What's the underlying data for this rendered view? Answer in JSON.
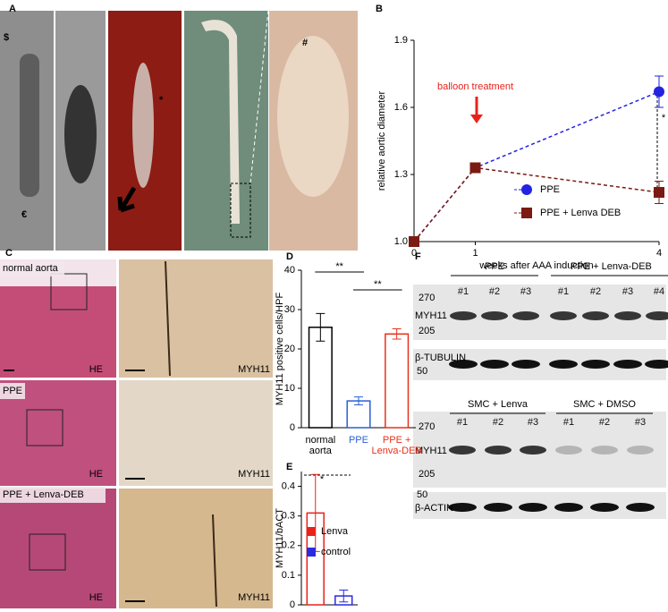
{
  "panel_letters": [
    "A",
    "B",
    "C",
    "D",
    "E",
    "F"
  ],
  "photo_labels": {
    "a": [
      "$",
      "€",
      "*",
      "#"
    ],
    "c": {
      "rows": [
        "normal aorta",
        "PPE",
        "PPE + Lenva-DEB"
      ],
      "stains": [
        "HE",
        "MYH11"
      ]
    }
  },
  "chart_data": [
    {
      "type": "line",
      "y_label": "relative aortic diameter",
      "x_label": "weeks after AAA induction",
      "x": [
        0,
        1,
        4
      ],
      "xlim": [
        0,
        4
      ],
      "xticks": [
        0,
        1,
        4
      ],
      "ylim": [
        1.0,
        1.9
      ],
      "yticks": [
        {
          "value": 1.0,
          "label": "1.0"
        },
        {
          "value": 1.3,
          "label": "1.3"
        },
        {
          "value": 1.6,
          "label": "1.6"
        },
        {
          "value": 1.9,
          "label": "1.9"
        }
      ],
      "series": [
        {
          "name": "PPE",
          "color": "#2323e0",
          "marker": "circle",
          "values": [
            1.0,
            1.33,
            1.67
          ],
          "errors": [
            0.01,
            0.02,
            0.07
          ]
        },
        {
          "name": "PPE + Lenva DEB",
          "color": "#7b1a12",
          "marker": "square",
          "values": [
            1.0,
            1.33,
            1.22
          ],
          "errors": [
            0.01,
            0.02,
            0.05
          ]
        }
      ],
      "dashed": true,
      "legend": "lower right",
      "annotations": [
        "balloon treatment",
        "*"
      ]
    },
    {
      "type": "bar",
      "y_label": "MYH11 positive cells/HPF",
      "categories": [
        "normal aorta",
        "PPE",
        "PPE + Lenva-DEB"
      ],
      "values": [
        25.5,
        6.8,
        23.8
      ],
      "errors": [
        3.5,
        1.0,
        1.3
      ],
      "colors": [
        "#000000",
        "#2a5fd6",
        "#e8311a"
      ],
      "ylim": [
        0,
        40
      ],
      "yticks": [
        0,
        10,
        20,
        30,
        40
      ],
      "annotations": [
        "**",
        "**"
      ],
      "legend": false
    },
    {
      "type": "bar",
      "y_label": "MYH11/bACT",
      "categories": [
        "Lenva",
        "control"
      ],
      "values": [
        0.31,
        0.03
      ],
      "errors": [
        0.13,
        0.02
      ],
      "colors": [
        "#e8221a",
        "#2a2ae0"
      ],
      "ylim": [
        0,
        0.45
      ],
      "yticks": [
        0,
        0.1,
        0.2,
        0.3,
        0.4
      ],
      "annotations": [
        "*"
      ],
      "legend": true
    }
  ],
  "blots": [
    {
      "groups": [
        "PPE",
        "PPE + Lenva-DEB"
      ],
      "group_sizes": [
        3,
        4
      ],
      "lanes": [
        "#1",
        "#2",
        "#3",
        "#1",
        "#2",
        "#3",
        "#4"
      ],
      "ladder": [
        "270",
        "205"
      ],
      "target": "MYH11",
      "loading": "β-TUBULIN",
      "loading_marker": "50"
    },
    {
      "groups": [
        "SMC + Lenva",
        "SMC + DMSO"
      ],
      "group_sizes": [
        3,
        3
      ],
      "lanes": [
        "#1",
        "#2",
        "#3",
        "#1",
        "#2",
        "#3"
      ],
      "ladder": [
        "270",
        "205"
      ],
      "target": "MYH11",
      "loading": "β-ACTIN",
      "loading_marker": "50"
    }
  ]
}
